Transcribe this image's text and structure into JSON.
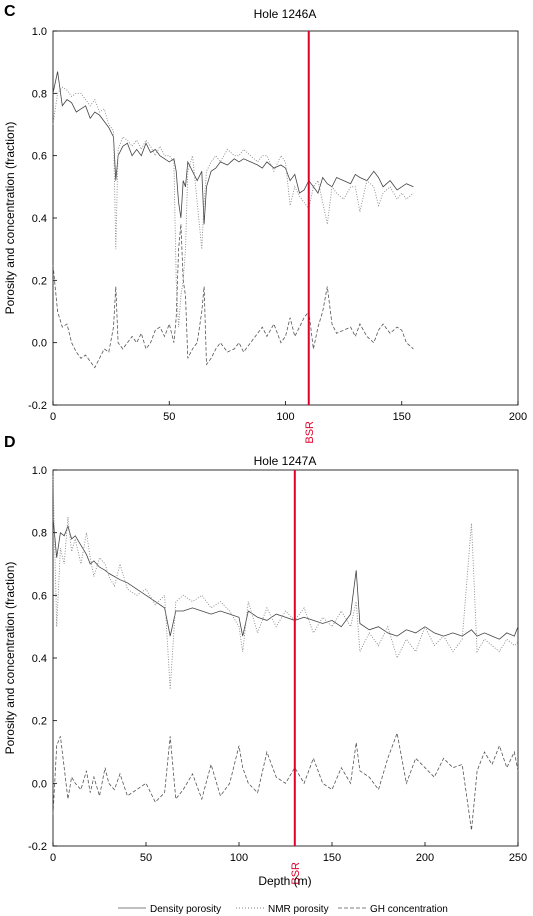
{
  "figure": {
    "xlabel_shared": "Depth (m)",
    "legend": [
      {
        "label": "Density porosity",
        "style": "solid"
      },
      {
        "label": "NMR porosity",
        "style": "dotted"
      },
      {
        "label": "GH concentration",
        "style": "dashed"
      }
    ],
    "colors": {
      "bsr": "#e0002a",
      "series": "#555555",
      "axes": "#000000"
    }
  },
  "chart_data": [
    {
      "panel": "C",
      "type": "line",
      "title": "Hole 1246A",
      "xlabel": "",
      "ylabel": "Porosity and concentration (fraction)",
      "xlim": [
        0,
        200
      ],
      "ylim": [
        -0.2,
        1.0
      ],
      "xticks": [
        "0",
        "50",
        "100",
        "150",
        "200"
      ],
      "yticks": [
        "-0.2",
        "0.0",
        "0.2",
        "0.4",
        "0.6",
        "0.8",
        "1.0"
      ],
      "grid": false,
      "bsr": {
        "depth": 110,
        "label": "BSR"
      },
      "series": [
        {
          "name": "Density porosity",
          "style": "solid",
          "x": [
            0,
            2,
            4,
            6,
            8,
            10,
            12,
            14,
            16,
            18,
            20,
            22,
            24,
            26,
            27,
            28,
            30,
            32,
            34,
            36,
            38,
            40,
            42,
            44,
            46,
            48,
            50,
            52,
            53,
            54,
            55,
            56,
            57,
            58,
            60,
            62,
            64,
            65,
            66,
            68,
            70,
            72,
            75,
            78,
            80,
            82,
            85,
            88,
            90,
            92,
            95,
            98,
            100,
            102,
            104,
            106,
            108,
            110,
            112,
            114,
            116,
            118,
            120,
            122,
            125,
            128,
            130,
            132,
            135,
            138,
            140,
            142,
            145,
            148,
            150,
            152,
            155
          ],
          "y": [
            0.8,
            0.87,
            0.76,
            0.78,
            0.77,
            0.74,
            0.75,
            0.76,
            0.72,
            0.74,
            0.73,
            0.71,
            0.69,
            0.66,
            0.52,
            0.6,
            0.63,
            0.64,
            0.6,
            0.62,
            0.6,
            0.64,
            0.61,
            0.62,
            0.6,
            0.59,
            0.58,
            0.59,
            0.55,
            0.45,
            0.4,
            0.52,
            0.5,
            0.58,
            0.55,
            0.52,
            0.55,
            0.38,
            0.5,
            0.55,
            0.56,
            0.58,
            0.57,
            0.59,
            0.58,
            0.59,
            0.58,
            0.57,
            0.56,
            0.58,
            0.56,
            0.57,
            0.56,
            0.52,
            0.54,
            0.48,
            0.49,
            0.52,
            0.5,
            0.48,
            0.53,
            0.51,
            0.5,
            0.53,
            0.52,
            0.51,
            0.54,
            0.53,
            0.52,
            0.55,
            0.53,
            0.5,
            0.52,
            0.49,
            0.5,
            0.51,
            0.5
          ]
        },
        {
          "name": "NMR porosity",
          "style": "dotted",
          "x": [
            0,
            2,
            4,
            6,
            8,
            10,
            12,
            14,
            16,
            18,
            20,
            22,
            24,
            26,
            27,
            28,
            30,
            32,
            34,
            36,
            38,
            40,
            42,
            44,
            46,
            48,
            50,
            52,
            53,
            54,
            55,
            56,
            57,
            58,
            60,
            62,
            64,
            65,
            66,
            68,
            70,
            72,
            75,
            78,
            80,
            82,
            85,
            88,
            90,
            92,
            95,
            98,
            100,
            102,
            104,
            106,
            108,
            110,
            112,
            114,
            116,
            118,
            120,
            122,
            125,
            128,
            130,
            132,
            135,
            138,
            140,
            142,
            145,
            148,
            150,
            152,
            155
          ],
          "y": [
            0.7,
            0.8,
            0.82,
            0.81,
            0.79,
            0.8,
            0.8,
            0.78,
            0.76,
            0.78,
            0.74,
            0.75,
            0.7,
            0.68,
            0.3,
            0.62,
            0.66,
            0.65,
            0.63,
            0.65,
            0.62,
            0.65,
            0.63,
            0.6,
            0.63,
            0.6,
            0.6,
            0.58,
            0.2,
            0.05,
            0.15,
            0.2,
            0.3,
            0.55,
            0.6,
            0.45,
            0.3,
            0.45,
            0.55,
            0.58,
            0.6,
            0.58,
            0.62,
            0.6,
            0.6,
            0.62,
            0.6,
            0.58,
            0.6,
            0.6,
            0.55,
            0.6,
            0.58,
            0.44,
            0.5,
            0.47,
            0.45,
            0.43,
            0.5,
            0.52,
            0.45,
            0.38,
            0.5,
            0.48,
            0.46,
            0.5,
            0.5,
            0.42,
            0.52,
            0.5,
            0.44,
            0.48,
            0.5,
            0.46,
            0.48,
            0.46,
            0.48
          ]
        },
        {
          "name": "GH concentration",
          "style": "dashed",
          "x": [
            0,
            2,
            4,
            6,
            8,
            10,
            12,
            14,
            16,
            18,
            20,
            22,
            24,
            26,
            27,
            28,
            30,
            32,
            34,
            36,
            38,
            40,
            42,
            44,
            46,
            48,
            50,
            52,
            53,
            54,
            55,
            56,
            57,
            58,
            60,
            62,
            64,
            65,
            66,
            68,
            70,
            72,
            75,
            78,
            80,
            82,
            85,
            88,
            90,
            92,
            95,
            98,
            100,
            102,
            104,
            106,
            108,
            110,
            112,
            114,
            116,
            118,
            120,
            122,
            125,
            128,
            130,
            132,
            135,
            138,
            140,
            142,
            145,
            148,
            150,
            152,
            155
          ],
          "y": [
            0.25,
            0.1,
            0.05,
            0.06,
            0.0,
            -0.03,
            -0.05,
            -0.04,
            -0.06,
            -0.08,
            -0.05,
            -0.02,
            -0.03,
            0.05,
            0.18,
            0.0,
            -0.02,
            0.0,
            0.02,
            0.0,
            0.03,
            -0.02,
            0.0,
            0.04,
            0.05,
            0.02,
            0.06,
            0.0,
            0.08,
            0.3,
            0.38,
            0.2,
            0.15,
            -0.05,
            -0.02,
            0.0,
            0.1,
            0.18,
            -0.07,
            -0.05,
            -0.02,
            0.0,
            -0.03,
            -0.02,
            0.0,
            -0.03,
            0.0,
            0.03,
            0.05,
            0.02,
            0.06,
            0.0,
            0.02,
            0.08,
            0.02,
            0.05,
            0.08,
            0.1,
            -0.02,
            0.05,
            0.1,
            0.18,
            0.06,
            0.03,
            0.04,
            0.05,
            0.02,
            0.06,
            0.02,
            0.0,
            0.04,
            0.06,
            0.03,
            0.05,
            0.04,
            0.0,
            -0.02
          ]
        }
      ]
    },
    {
      "panel": "D",
      "type": "line",
      "title": "Hole 1247A",
      "xlabel": "Depth (m)",
      "ylabel": "Porosity and concentration (fraction)",
      "xlim": [
        0,
        250
      ],
      "ylim": [
        -0.2,
        1.0
      ],
      "xticks": [
        "0",
        "50",
        "100",
        "150",
        "200",
        "250"
      ],
      "yticks": [
        "-0.2",
        "0.0",
        "0.2",
        "0.4",
        "0.6",
        "0.8",
        "1.0"
      ],
      "grid": false,
      "bsr": {
        "depth": 130,
        "label": "BSR"
      },
      "series": [
        {
          "name": "Density porosity",
          "style": "solid",
          "x": [
            0,
            2,
            4,
            6,
            8,
            10,
            12,
            15,
            18,
            20,
            22,
            25,
            28,
            30,
            33,
            36,
            40,
            45,
            50,
            55,
            60,
            63,
            66,
            70,
            75,
            80,
            85,
            90,
            95,
            100,
            102,
            105,
            110,
            115,
            120,
            125,
            130,
            135,
            140,
            145,
            150,
            155,
            160,
            163,
            165,
            170,
            175,
            180,
            185,
            190,
            195,
            200,
            205,
            210,
            215,
            220,
            225,
            228,
            232,
            236,
            240,
            244,
            248,
            250
          ],
          "y": [
            0.85,
            0.72,
            0.8,
            0.79,
            0.82,
            0.78,
            0.79,
            0.76,
            0.73,
            0.7,
            0.71,
            0.69,
            0.68,
            0.67,
            0.66,
            0.65,
            0.64,
            0.62,
            0.6,
            0.58,
            0.56,
            0.47,
            0.55,
            0.55,
            0.56,
            0.55,
            0.54,
            0.55,
            0.54,
            0.53,
            0.47,
            0.55,
            0.53,
            0.52,
            0.54,
            0.53,
            0.52,
            0.53,
            0.52,
            0.51,
            0.52,
            0.5,
            0.54,
            0.68,
            0.51,
            0.49,
            0.5,
            0.48,
            0.47,
            0.49,
            0.48,
            0.5,
            0.48,
            0.47,
            0.48,
            0.47,
            0.49,
            0.47,
            0.48,
            0.47,
            0.46,
            0.48,
            0.47,
            0.5
          ]
        },
        {
          "name": "NMR porosity",
          "style": "dotted",
          "x": [
            0,
            2,
            4,
            6,
            8,
            10,
            12,
            15,
            18,
            20,
            22,
            25,
            28,
            30,
            33,
            36,
            40,
            45,
            50,
            55,
            60,
            63,
            66,
            70,
            75,
            80,
            85,
            90,
            95,
            100,
            102,
            105,
            110,
            115,
            120,
            125,
            130,
            135,
            140,
            145,
            150,
            155,
            160,
            163,
            165,
            170,
            175,
            180,
            185,
            190,
            195,
            200,
            205,
            210,
            215,
            220,
            225,
            228,
            232,
            236,
            240,
            244,
            248,
            250
          ],
          "y": [
            0.98,
            0.5,
            0.75,
            0.7,
            0.85,
            0.74,
            0.78,
            0.7,
            0.8,
            0.72,
            0.66,
            0.72,
            0.7,
            0.66,
            0.63,
            0.7,
            0.62,
            0.6,
            0.62,
            0.57,
            0.6,
            0.3,
            0.58,
            0.6,
            0.58,
            0.6,
            0.56,
            0.58,
            0.55,
            0.5,
            0.42,
            0.58,
            0.48,
            0.56,
            0.5,
            0.55,
            0.52,
            0.56,
            0.48,
            0.53,
            0.5,
            0.55,
            0.5,
            0.58,
            0.42,
            0.48,
            0.44,
            0.5,
            0.4,
            0.46,
            0.42,
            0.5,
            0.44,
            0.47,
            0.42,
            0.46,
            0.83,
            0.42,
            0.46,
            0.44,
            0.42,
            0.46,
            0.44,
            0.45
          ]
        },
        {
          "name": "GH concentration",
          "style": "dashed",
          "x": [
            0,
            2,
            4,
            6,
            8,
            10,
            12,
            15,
            18,
            20,
            22,
            25,
            28,
            30,
            33,
            36,
            40,
            45,
            50,
            55,
            60,
            63,
            66,
            70,
            75,
            80,
            85,
            90,
            95,
            100,
            102,
            105,
            110,
            115,
            120,
            125,
            130,
            135,
            140,
            145,
            150,
            155,
            160,
            163,
            165,
            170,
            175,
            180,
            185,
            190,
            195,
            200,
            205,
            210,
            215,
            220,
            225,
            228,
            232,
            236,
            240,
            244,
            248,
            250
          ],
          "y": [
            -0.1,
            0.12,
            0.15,
            0.05,
            -0.05,
            0.02,
            0.0,
            -0.02,
            0.04,
            -0.03,
            0.02,
            -0.04,
            0.05,
            0.0,
            -0.02,
            0.03,
            -0.04,
            -0.02,
            0.0,
            -0.06,
            -0.03,
            0.15,
            -0.05,
            -0.02,
            0.03,
            -0.05,
            0.06,
            -0.04,
            0.0,
            0.12,
            0.05,
            0.0,
            -0.03,
            0.1,
            0.02,
            0.0,
            0.05,
            0.0,
            0.08,
            0.0,
            -0.02,
            0.05,
            0.0,
            0.13,
            0.04,
            0.02,
            -0.02,
            0.08,
            0.16,
            0.0,
            0.08,
            0.05,
            0.02,
            0.08,
            0.05,
            0.06,
            -0.15,
            0.04,
            0.1,
            0.06,
            0.12,
            0.05,
            0.1,
            0.04
          ]
        }
      ]
    }
  ]
}
